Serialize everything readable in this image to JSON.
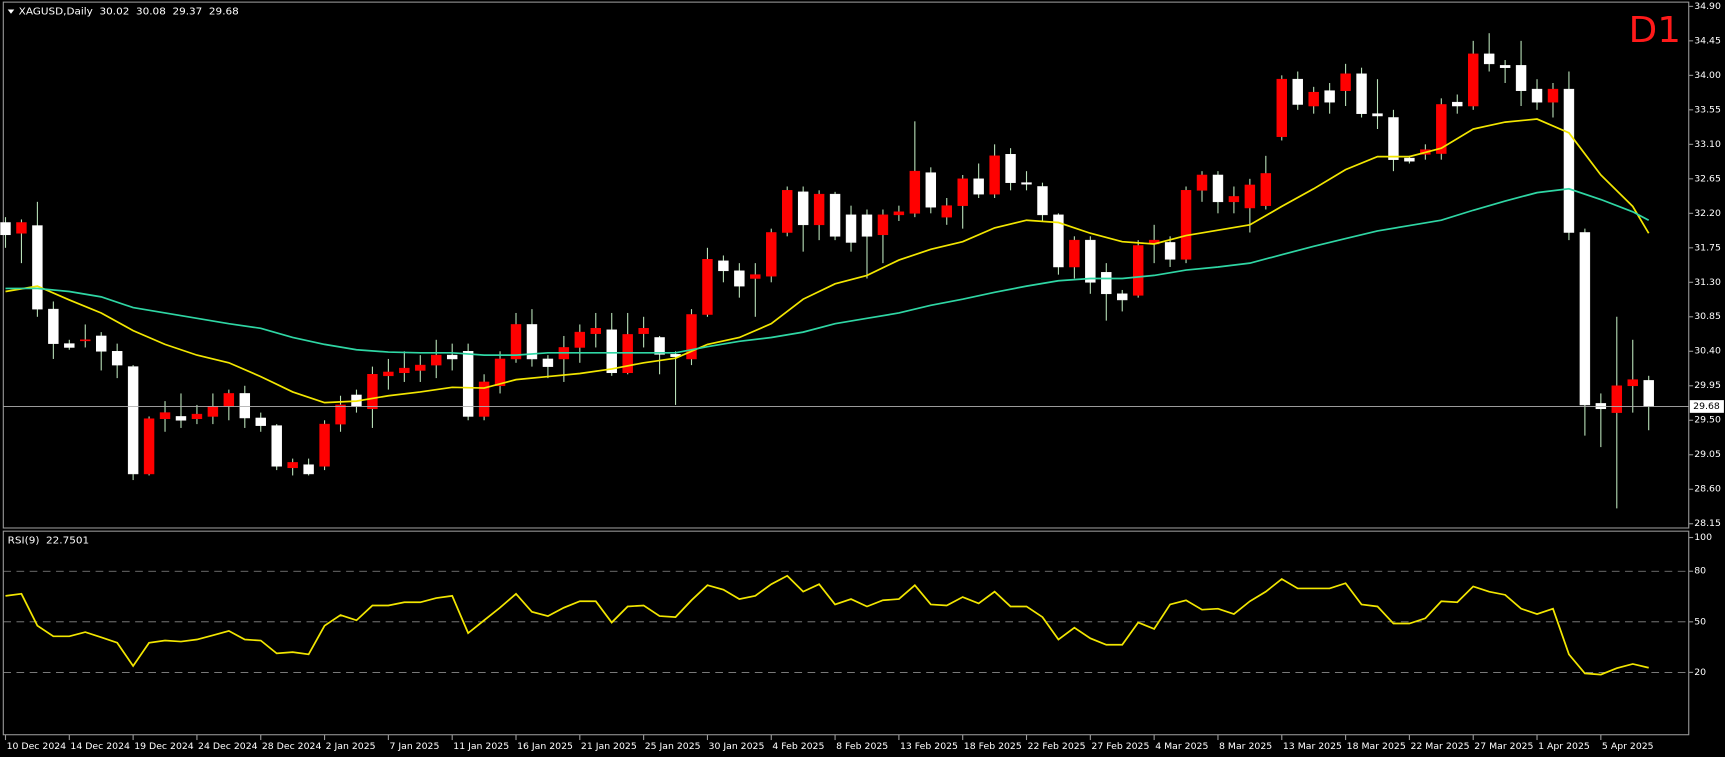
{
  "chart_data": [
    {
      "type": "candlestick",
      "title": "XAGUSD,Daily",
      "timeframe": "D1",
      "categories": [
        "10 Dec 2024",
        null,
        null,
        null,
        "14 Dec 2024",
        null,
        null,
        null,
        "19 Dec 2024",
        null,
        null,
        null,
        "24 Dec 2024",
        null,
        null,
        null,
        "28 Dec 2024",
        null,
        null,
        null,
        "2 Jan 2025",
        null,
        null,
        null,
        "7 Jan 2025",
        null,
        null,
        null,
        "11 Jan 2025",
        null,
        null,
        null,
        "16 Jan 2025",
        null,
        null,
        null,
        "21 Jan 2025",
        null,
        null,
        null,
        "25 Jan 2025",
        null,
        null,
        null,
        "30 Jan 2025",
        null,
        null,
        null,
        "4 Feb 2025",
        null,
        null,
        null,
        "8 Feb 2025",
        null,
        null,
        null,
        "13 Feb 2025",
        null,
        null,
        null,
        "18 Feb 2025",
        null,
        null,
        null,
        "22 Feb 2025",
        null,
        null,
        null,
        "27 Feb 2025",
        null,
        null,
        null,
        "4 Mar 2025",
        null,
        null,
        null,
        "8 Mar 2025",
        null,
        null,
        null,
        "13 Mar 2025",
        null,
        null,
        null,
        "18 Mar 2025",
        null,
        null,
        null,
        "22 Mar 2025",
        null,
        null,
        null,
        "27 Mar 2025",
        null,
        null,
        null,
        "1 Apr 2025",
        null,
        null,
        null,
        "5 Apr 2025",
        null,
        null,
        null
      ],
      "open": [
        32.08,
        31.94,
        32.04,
        30.95,
        30.5,
        30.55,
        30.6,
        30.4,
        30.2,
        28.8,
        29.52,
        29.55,
        29.52,
        29.55,
        29.68,
        29.85,
        29.53,
        29.43,
        28.88,
        28.92,
        28.9,
        29.45,
        29.83,
        29.65,
        30.08,
        30.12,
        30.15,
        30.22,
        30.35,
        30.4,
        29.55,
        29.95,
        30.3,
        30.75,
        30.3,
        30.3,
        30.45,
        30.63,
        30.68,
        30.12,
        30.63,
        30.58,
        30.36,
        30.3,
        30.88,
        31.58,
        31.45,
        31.35,
        31.38,
        31.95,
        32.48,
        32.05,
        32.45,
        32.18,
        32.18,
        31.92,
        32.18,
        32.2,
        32.73,
        32.15,
        32.3,
        32.65,
        32.45,
        32.97,
        32.6,
        32.55,
        32.18,
        31.5,
        31.85,
        31.43,
        31.15,
        31.13,
        31.8,
        31.82,
        31.6,
        32.5,
        32.7,
        32.35,
        32.27,
        32.3,
        33.2,
        33.95,
        33.6,
        33.8,
        33.8,
        34.02,
        33.5,
        33.45,
        32.92,
        32.97,
        32.98,
        33.65,
        33.6,
        34.28,
        34.13,
        34.13,
        33.82,
        33.65,
        33.82,
        31.95,
        29.72,
        29.6,
        29.95,
        30.02
      ],
      "high": [
        32.15,
        32.12,
        32.35,
        31.05,
        30.55,
        30.75,
        30.65,
        30.5,
        30.22,
        29.55,
        29.75,
        29.85,
        29.7,
        29.85,
        29.9,
        29.95,
        29.6,
        29.45,
        29.0,
        29.0,
        29.5,
        29.82,
        29.9,
        30.2,
        30.3,
        30.4,
        30.35,
        30.55,
        30.5,
        30.5,
        30.1,
        30.4,
        30.9,
        30.95,
        30.35,
        30.6,
        30.75,
        30.9,
        30.9,
        30.9,
        30.85,
        30.6,
        30.4,
        30.95,
        31.75,
        31.65,
        31.55,
        31.55,
        32.0,
        32.55,
        32.55,
        32.5,
        32.48,
        32.3,
        32.25,
        32.25,
        32.3,
        33.4,
        32.8,
        32.4,
        32.7,
        32.85,
        33.1,
        33.05,
        32.75,
        32.6,
        32.2,
        31.9,
        31.9,
        31.55,
        31.2,
        31.85,
        32.05,
        31.9,
        32.55,
        32.75,
        32.75,
        32.55,
        32.65,
        32.95,
        34.0,
        34.05,
        33.85,
        33.9,
        34.15,
        34.1,
        33.95,
        33.55,
        32.95,
        33.1,
        33.7,
        33.75,
        34.45,
        34.55,
        34.2,
        34.45,
        33.95,
        33.9,
        34.05,
        32.0,
        29.85,
        30.85,
        30.55,
        30.08
      ],
      "low": [
        31.75,
        31.55,
        30.85,
        30.3,
        30.42,
        30.45,
        30.15,
        30.05,
        28.72,
        28.78,
        29.35,
        29.4,
        29.45,
        29.45,
        29.5,
        29.4,
        29.35,
        28.85,
        28.78,
        28.78,
        28.85,
        29.35,
        29.6,
        29.4,
        29.9,
        30.0,
        30.0,
        30.05,
        30.15,
        29.5,
        29.5,
        29.85,
        30.25,
        30.2,
        30.05,
        30.0,
        30.25,
        30.45,
        30.08,
        30.1,
        30.45,
        30.1,
        29.7,
        30.22,
        30.85,
        31.3,
        31.1,
        30.85,
        31.3,
        31.9,
        31.7,
        31.85,
        31.85,
        31.7,
        31.35,
        31.55,
        32.1,
        32.15,
        32.2,
        32.05,
        32.0,
        32.4,
        32.4,
        32.5,
        32.5,
        32.1,
        31.4,
        31.35,
        31.15,
        30.8,
        30.92,
        31.1,
        31.55,
        31.5,
        31.55,
        32.35,
        32.2,
        32.2,
        31.95,
        32.25,
        33.15,
        33.55,
        33.5,
        33.5,
        33.6,
        33.45,
        33.3,
        32.75,
        32.85,
        32.9,
        32.9,
        33.5,
        33.55,
        34.05,
        33.9,
        33.6,
        33.55,
        33.45,
        31.85,
        29.3,
        29.15,
        28.35,
        29.6,
        29.37
      ],
      "close": [
        31.92,
        32.08,
        30.95,
        30.5,
        30.45,
        30.55,
        30.4,
        30.22,
        28.8,
        29.52,
        29.6,
        29.5,
        29.58,
        29.68,
        29.85,
        29.53,
        29.43,
        28.9,
        28.95,
        28.8,
        29.45,
        29.7,
        29.68,
        30.1,
        30.13,
        30.18,
        30.22,
        30.35,
        30.3,
        29.55,
        30.0,
        30.3,
        30.75,
        30.3,
        30.2,
        30.45,
        30.65,
        30.7,
        30.12,
        30.62,
        30.7,
        30.36,
        30.33,
        30.88,
        31.6,
        31.45,
        31.25,
        31.4,
        31.95,
        32.5,
        32.05,
        32.45,
        31.9,
        31.82,
        31.9,
        32.18,
        32.22,
        32.75,
        32.28,
        32.3,
        32.65,
        32.45,
        32.95,
        32.6,
        32.58,
        32.18,
        31.5,
        31.85,
        31.3,
        31.15,
        31.07,
        31.78,
        31.85,
        31.6,
        32.5,
        32.7,
        32.35,
        32.42,
        32.57,
        32.72,
        33.95,
        33.62,
        33.78,
        33.65,
        34.02,
        33.5,
        33.47,
        32.9,
        32.88,
        33.03,
        33.62,
        33.6,
        34.28,
        34.15,
        34.1,
        33.8,
        33.65,
        33.82,
        31.95,
        29.7,
        29.65,
        29.95,
        30.03,
        29.68
      ],
      "up_color": "#ff0000",
      "down_color": "#ffffff",
      "wick_color": "#b8e0b8",
      "series": [
        {
          "color": "#f2e600",
          "x": [
            0,
            2,
            4,
            6,
            8,
            10,
            12,
            14,
            16,
            18,
            20,
            22,
            24,
            26,
            28,
            30,
            32,
            34,
            36,
            38,
            40,
            42,
            44,
            46,
            48,
            50,
            52,
            54,
            56,
            58,
            60,
            62,
            64,
            66,
            68,
            70,
            72,
            74,
            76,
            78,
            80,
            82,
            84,
            86,
            88,
            90,
            92,
            94,
            96,
            98,
            100,
            102,
            103
          ],
          "values": [
            31.18,
            31.25,
            31.07,
            30.9,
            30.67,
            30.49,
            30.35,
            30.25,
            30.07,
            29.87,
            29.73,
            29.75,
            29.82,
            29.87,
            29.93,
            29.92,
            30.03,
            30.07,
            30.11,
            30.17,
            30.25,
            30.31,
            30.49,
            30.58,
            30.76,
            31.08,
            31.28,
            31.39,
            31.59,
            31.73,
            31.83,
            32.01,
            32.11,
            32.08,
            31.94,
            31.83,
            31.8,
            31.91,
            31.98,
            32.05,
            32.29,
            32.52,
            32.77,
            32.94,
            32.94,
            33.05,
            33.3,
            33.39,
            33.43,
            33.25,
            32.7,
            32.29,
            31.94
          ]
        },
        {
          "color": "#2fd6a4",
          "x": [
            0,
            2,
            4,
            6,
            8,
            10,
            12,
            14,
            16,
            18,
            20,
            22,
            24,
            26,
            28,
            30,
            32,
            34,
            36,
            38,
            40,
            42,
            44,
            46,
            48,
            50,
            52,
            54,
            56,
            58,
            60,
            62,
            64,
            66,
            68,
            70,
            72,
            74,
            76,
            78,
            80,
            82,
            84,
            86,
            88,
            90,
            92,
            94,
            96,
            98,
            100,
            102,
            103
          ],
          "values": [
            31.22,
            31.22,
            31.18,
            31.11,
            30.97,
            30.9,
            30.83,
            30.76,
            30.7,
            30.58,
            30.49,
            30.42,
            30.39,
            30.38,
            30.38,
            30.35,
            30.35,
            30.38,
            30.38,
            30.38,
            30.38,
            30.38,
            30.46,
            30.53,
            30.58,
            30.65,
            30.76,
            30.83,
            30.9,
            31.0,
            31.08,
            31.17,
            31.25,
            31.32,
            31.35,
            31.35,
            31.39,
            31.46,
            31.5,
            31.55,
            31.66,
            31.77,
            31.87,
            31.97,
            32.04,
            32.11,
            32.24,
            32.36,
            32.47,
            32.52,
            32.38,
            32.22,
            32.11
          ]
        }
      ],
      "ylim": [
        28.15,
        34.9
      ],
      "yticks": [
        {
          "value": 34.9,
          "label": "34.90"
        },
        34.45,
        {
          "value": 34.0,
          "label": "34.00"
        },
        33.55,
        {
          "value": 33.1,
          "label": "33.10"
        },
        32.65,
        {
          "value": 32.2,
          "label": "32.20"
        },
        31.75,
        {
          "value": 31.3,
          "label": "31.30"
        },
        30.85,
        {
          "value": 30.4,
          "label": "30.40"
        },
        29.95,
        {
          "value": 29.5,
          "label": "29.50"
        },
        29.05,
        {
          "value": 28.6,
          "label": "28.60"
        },
        28.15
      ],
      "current_price_line": true,
      "grid": false
    },
    {
      "type": "line",
      "title": "RSI(9)",
      "color": "#f2e600",
      "values": [
        65.4,
        66.6,
        47.7,
        41.4,
        41.4,
        43.9,
        40.8,
        37.6,
        23.8,
        37.6,
        38.9,
        38.3,
        39.5,
        42.0,
        44.6,
        39.5,
        38.9,
        31.3,
        32.0,
        30.7,
        47.7,
        54.0,
        50.9,
        59.7,
        59.7,
        61.6,
        61.6,
        64.1,
        65.4,
        43.3,
        50.9,
        58.4,
        66.6,
        55.9,
        53.4,
        58.4,
        62.2,
        62.2,
        49.6,
        59.1,
        59.7,
        53.4,
        52.8,
        62.8,
        71.7,
        69.1,
        63.5,
        65.4,
        72.3,
        77.3,
        67.9,
        72.3,
        60.3,
        63.5,
        59.1,
        62.8,
        63.5,
        71.7,
        60.3,
        59.7,
        64.7,
        60.9,
        67.9,
        59.1,
        59.1,
        52.8,
        39.5,
        46.5,
        40.2,
        36.4,
        36.4,
        49.6,
        45.8,
        60.3,
        62.8,
        57.2,
        57.8,
        54.6,
        62.2,
        67.9,
        75.4,
        69.8,
        69.8,
        69.8,
        72.9,
        60.3,
        59.1,
        49.0,
        49.0,
        52.1,
        62.2,
        61.6,
        71.0,
        67.9,
        66.0,
        57.8,
        54.6,
        57.8,
        30.7,
        19.4,
        18.7,
        22.5,
        25.0,
        22.7501
      ],
      "ylim": [
        0,
        100
      ],
      "yticks": [
        20,
        50,
        80,
        100
      ],
      "levels": [
        20,
        50,
        80
      ]
    }
  ]
}
